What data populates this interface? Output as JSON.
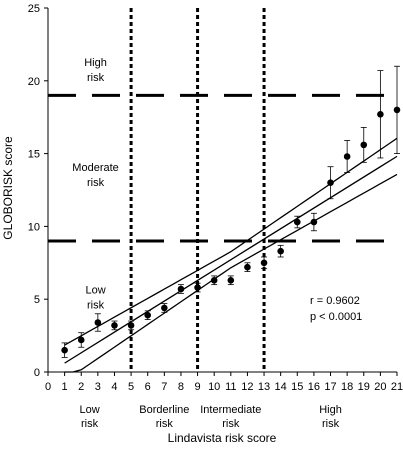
{
  "chart_data": {
    "type": "scatter",
    "xlabel": "Lindavista risk score",
    "ylabel": "GLOBORISK score",
    "xlim": [
      0,
      21
    ],
    "ylim": [
      0,
      25
    ],
    "x_ticks": [
      0,
      1,
      2,
      3,
      4,
      5,
      6,
      7,
      8,
      9,
      10,
      11,
      12,
      13,
      14,
      15,
      16,
      17,
      18,
      19,
      20,
      21
    ],
    "y_ticks": [
      0,
      5,
      10,
      15,
      20,
      25
    ],
    "grid": false,
    "points": [
      {
        "x": 1,
        "y": 1.5,
        "err": 0.5
      },
      {
        "x": 2,
        "y": 2.2,
        "err": 0.5
      },
      {
        "x": 3,
        "y": 3.4,
        "err": 0.6
      },
      {
        "x": 4,
        "y": 3.2,
        "err": 0.3
      },
      {
        "x": 5,
        "y": 3.2,
        "err": 0.3
      },
      {
        "x": 6,
        "y": 3.9,
        "err": 0.3
      },
      {
        "x": 7,
        "y": 4.4,
        "err": 0.3
      },
      {
        "x": 8,
        "y": 5.7,
        "err": 0.3
      },
      {
        "x": 9,
        "y": 5.8,
        "err": 0.3
      },
      {
        "x": 10,
        "y": 6.3,
        "err": 0.3
      },
      {
        "x": 11,
        "y": 6.3,
        "err": 0.3
      },
      {
        "x": 12,
        "y": 7.2,
        "err": 0.3
      },
      {
        "x": 13,
        "y": 7.5,
        "err": 0.4
      },
      {
        "x": 14,
        "y": 8.3,
        "err": 0.4
      },
      {
        "x": 15,
        "y": 10.3,
        "err": 0.4
      },
      {
        "x": 16,
        "y": 10.3,
        "err": 0.6
      },
      {
        "x": 17,
        "y": 13.0,
        "err": 1.1
      },
      {
        "x": 18,
        "y": 14.8,
        "err": 1.1
      },
      {
        "x": 19,
        "y": 15.6,
        "err": 1.2
      },
      {
        "x": 20,
        "y": 17.7,
        "err": 3.0
      },
      {
        "x": 21,
        "y": 18.0,
        "err": 3.0
      }
    ],
    "regression": {
      "slope": 0.71,
      "intercept": -0.1,
      "band": 0.55
    },
    "vertical_cutoffs": [
      5,
      9,
      13
    ],
    "horizontal_cutoffs": [
      9,
      19
    ],
    "annotations": {
      "r": "r = 0.9602",
      "p": "p < 0.0001"
    },
    "y_zone_labels": [
      {
        "line1": "High",
        "line2": "risk",
        "y": 21
      },
      {
        "line1": "Moderate",
        "line2": "risk",
        "y": 13.8
      },
      {
        "line1": "Low",
        "line2": "risk",
        "y": 5.4
      }
    ],
    "x_zone_labels": [
      {
        "line1": "Low",
        "line2": "risk",
        "x": 2.5
      },
      {
        "line1": "Borderline",
        "line2": "risk",
        "x": 7
      },
      {
        "line1": "Intermediate",
        "line2": "risk",
        "x": 11
      },
      {
        "line1": "High",
        "line2": "risk",
        "x": 17
      }
    ]
  }
}
